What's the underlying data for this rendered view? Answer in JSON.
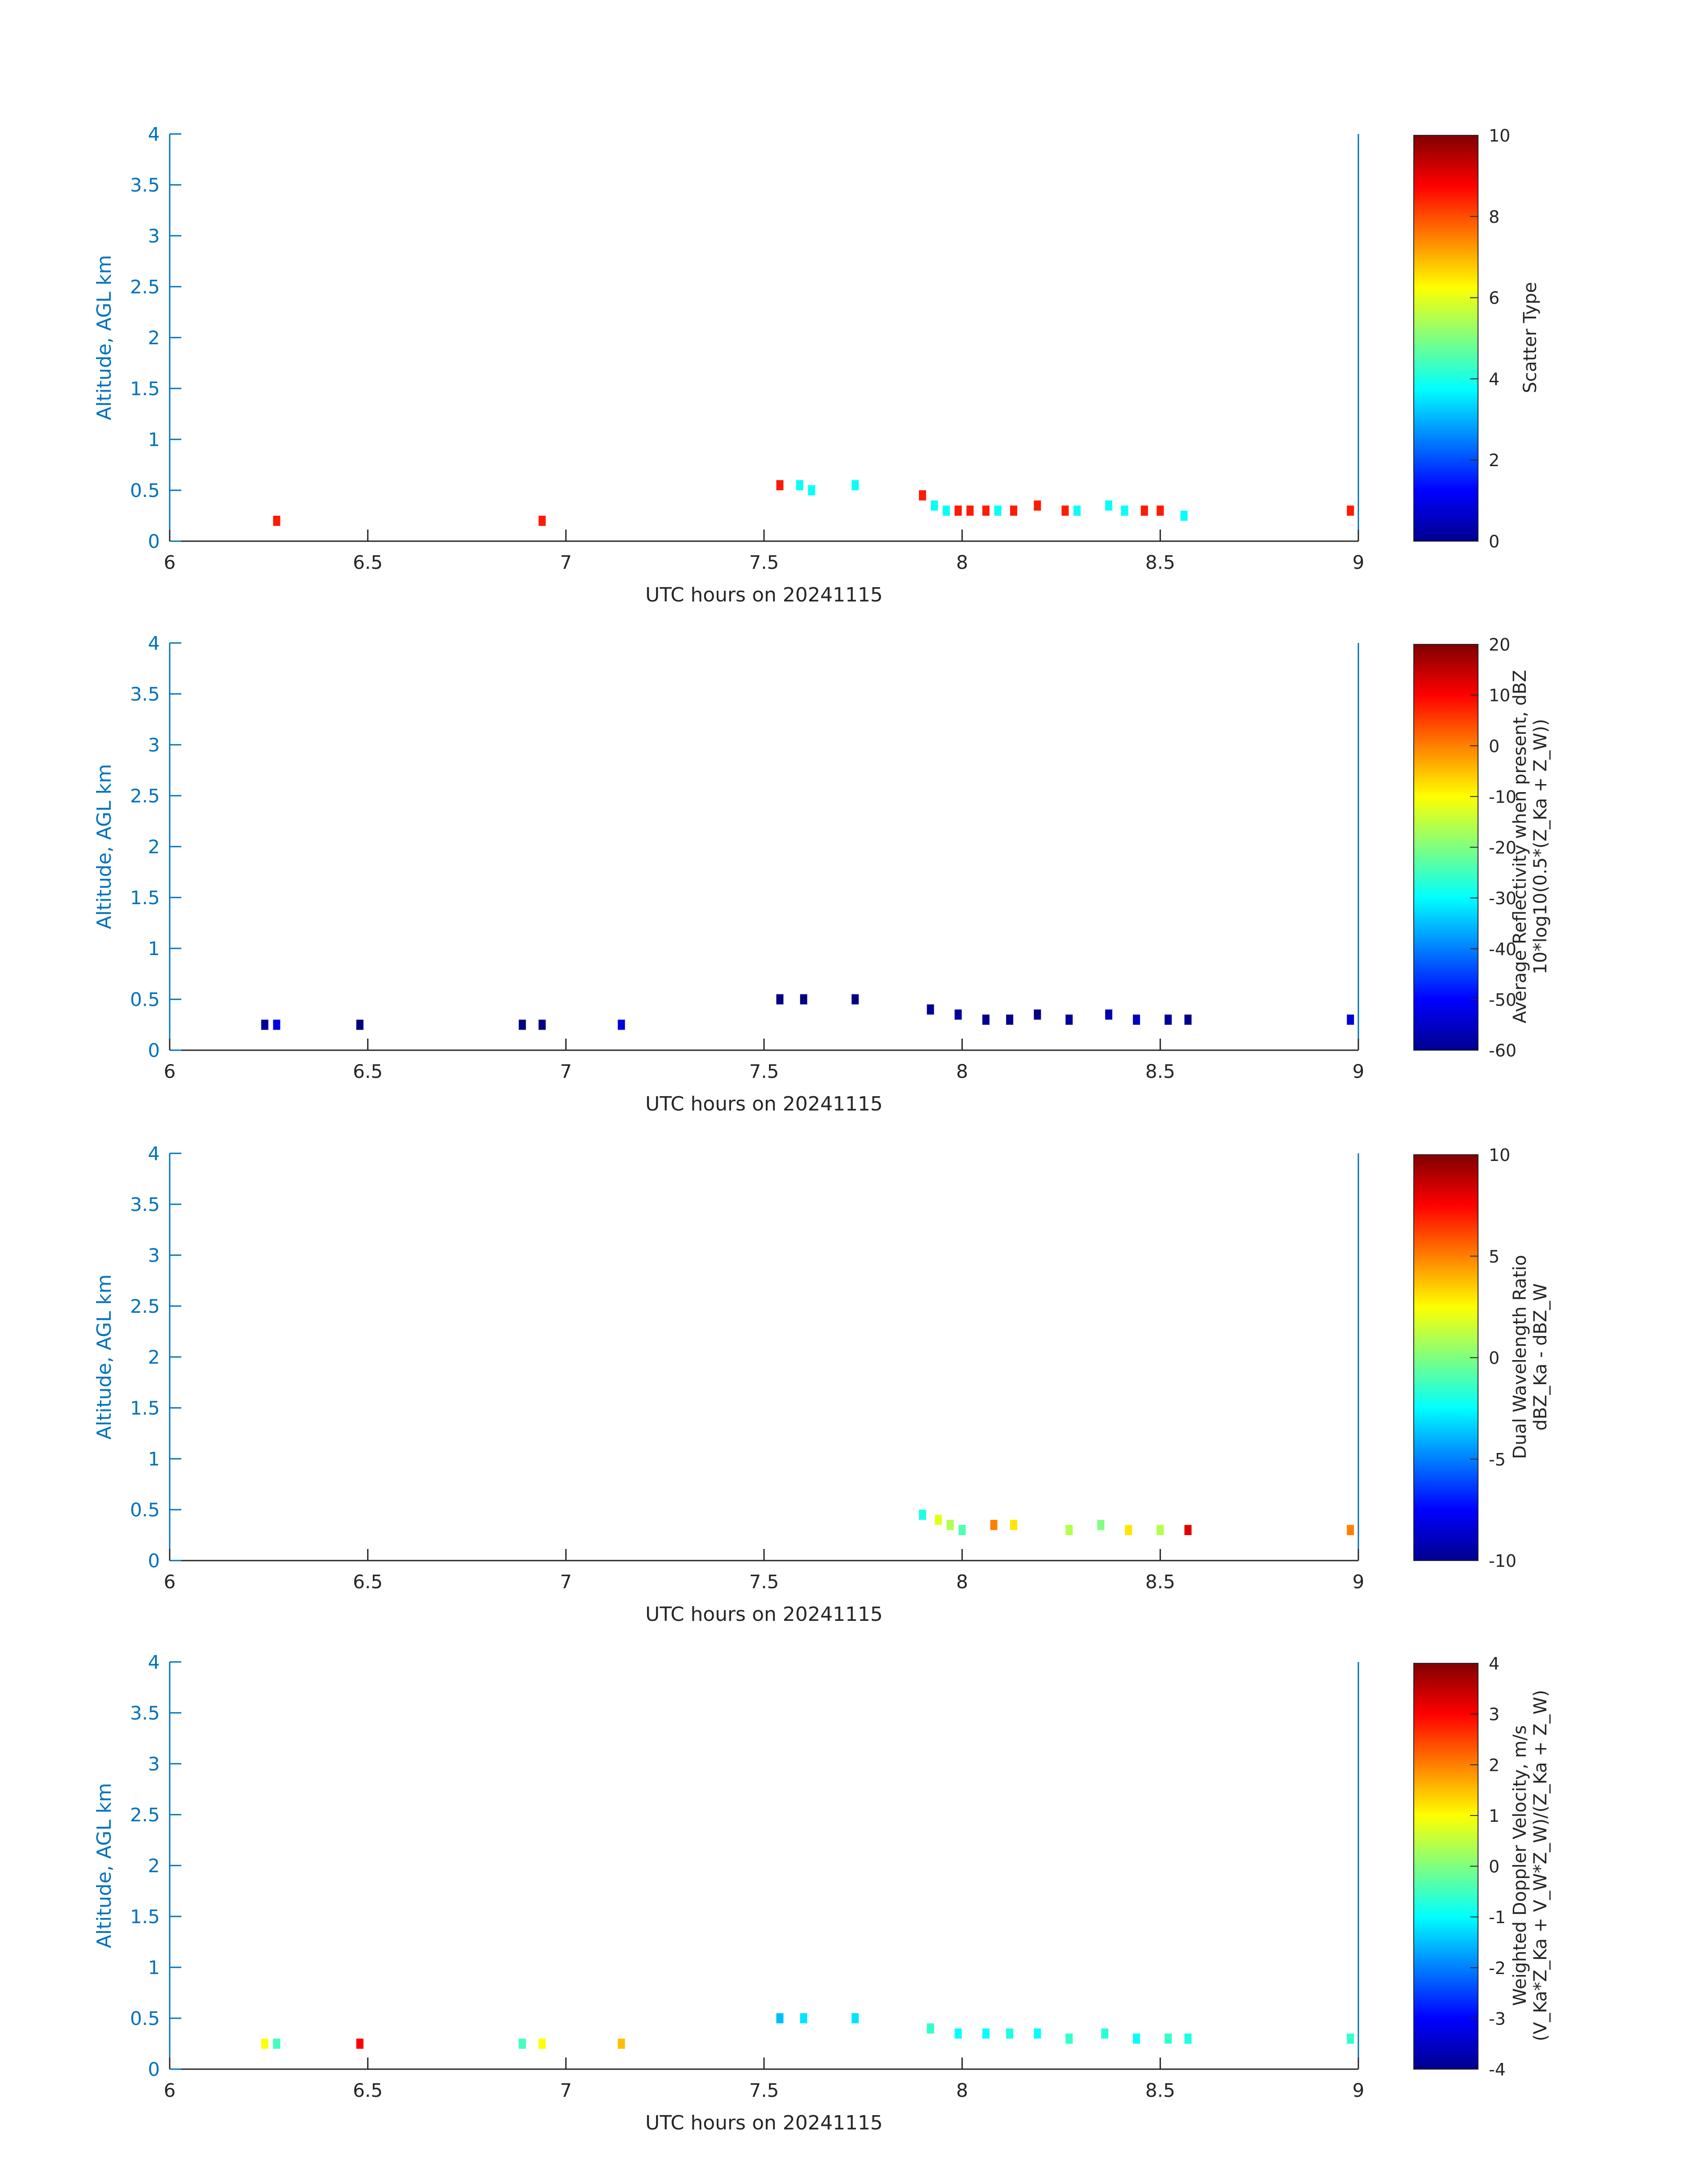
{
  "figure": {
    "xlabel": "UTC hours on 20241115",
    "ylabel": "Altitude, AGL km",
    "x_ticks": [
      "6",
      "6.5",
      "7",
      "7.5",
      "8",
      "8.5",
      "9"
    ],
    "y_ticks": [
      "0",
      "0.5",
      "1",
      "1.5",
      "2",
      "2.5",
      "3",
      "3.5",
      "4"
    ]
  },
  "chart_data": [
    {
      "type": "heatmap",
      "title": "",
      "xlabel": "UTC hours on 20241115",
      "ylabel": "Altitude, AGL km",
      "xlim": [
        6,
        9
      ],
      "ylim": [
        0,
        4
      ],
      "grid": false,
      "colormap": "jet",
      "colorbar": {
        "label_lines": [
          "Scatter Type"
        ],
        "range": [
          0,
          10
        ],
        "ticks": [
          "0",
          "2",
          "4",
          "6",
          "8",
          "10"
        ]
      },
      "cells": [
        {
          "x": 6.27,
          "y": 0.2,
          "value": 8.5
        },
        {
          "x": 6.94,
          "y": 0.2,
          "value": 8.5
        },
        {
          "x": 7.54,
          "y": 0.55,
          "value": 8.5
        },
        {
          "x": 7.59,
          "y": 0.55,
          "value": 3.8
        },
        {
          "x": 7.62,
          "y": 0.5,
          "value": 3.8
        },
        {
          "x": 7.73,
          "y": 0.55,
          "value": 3.8
        },
        {
          "x": 7.9,
          "y": 0.45,
          "value": 8.5
        },
        {
          "x": 7.93,
          "y": 0.35,
          "value": 3.8
        },
        {
          "x": 7.96,
          "y": 0.3,
          "value": 3.8
        },
        {
          "x": 7.99,
          "y": 0.3,
          "value": 8.5
        },
        {
          "x": 8.02,
          "y": 0.3,
          "value": 8.5
        },
        {
          "x": 8.06,
          "y": 0.3,
          "value": 8.5
        },
        {
          "x": 8.09,
          "y": 0.3,
          "value": 3.8
        },
        {
          "x": 8.13,
          "y": 0.3,
          "value": 8.5
        },
        {
          "x": 8.19,
          "y": 0.35,
          "value": 8.5
        },
        {
          "x": 8.26,
          "y": 0.3,
          "value": 8.5
        },
        {
          "x": 8.29,
          "y": 0.3,
          "value": 3.8
        },
        {
          "x": 8.37,
          "y": 0.35,
          "value": 3.8
        },
        {
          "x": 8.41,
          "y": 0.3,
          "value": 3.8
        },
        {
          "x": 8.46,
          "y": 0.3,
          "value": 8.5
        },
        {
          "x": 8.5,
          "y": 0.3,
          "value": 8.5
        },
        {
          "x": 8.56,
          "y": 0.25,
          "value": 3.8
        },
        {
          "x": 8.98,
          "y": 0.3,
          "value": 8.5
        }
      ]
    },
    {
      "type": "heatmap",
      "title": "",
      "xlabel": "UTC hours on 20241115",
      "ylabel": "Altitude, AGL km",
      "xlim": [
        6,
        9
      ],
      "ylim": [
        0,
        4
      ],
      "grid": false,
      "colormap": "jet",
      "colorbar": {
        "label_lines": [
          "Average Reflectivity when present, dBZ",
          "10*log10(0.5*(Z_Ka + Z_W))"
        ],
        "range": [
          -60,
          20
        ],
        "ticks": [
          "-60",
          "-50",
          "-40",
          "-30",
          "-20",
          "-10",
          "0",
          "10",
          "20"
        ]
      },
      "cells": [
        {
          "x": 6.24,
          "y": 0.25,
          "value": -58
        },
        {
          "x": 6.27,
          "y": 0.25,
          "value": -52
        },
        {
          "x": 6.48,
          "y": 0.25,
          "value": -60
        },
        {
          "x": 6.89,
          "y": 0.25,
          "value": -60
        },
        {
          "x": 6.94,
          "y": 0.25,
          "value": -60
        },
        {
          "x": 7.14,
          "y": 0.25,
          "value": -53
        },
        {
          "x": 7.54,
          "y": 0.5,
          "value": -60
        },
        {
          "x": 7.6,
          "y": 0.5,
          "value": -60
        },
        {
          "x": 7.73,
          "y": 0.5,
          "value": -60
        },
        {
          "x": 7.92,
          "y": 0.4,
          "value": -58
        },
        {
          "x": 7.99,
          "y": 0.35,
          "value": -58
        },
        {
          "x": 8.06,
          "y": 0.3,
          "value": -59
        },
        {
          "x": 8.12,
          "y": 0.3,
          "value": -59
        },
        {
          "x": 8.19,
          "y": 0.35,
          "value": -60
        },
        {
          "x": 8.27,
          "y": 0.3,
          "value": -58
        },
        {
          "x": 8.37,
          "y": 0.35,
          "value": -56
        },
        {
          "x": 8.44,
          "y": 0.3,
          "value": -55
        },
        {
          "x": 8.52,
          "y": 0.3,
          "value": -58
        },
        {
          "x": 8.57,
          "y": 0.3,
          "value": -59
        },
        {
          "x": 8.98,
          "y": 0.3,
          "value": -53
        }
      ]
    },
    {
      "type": "heatmap",
      "title": "",
      "xlabel": "UTC hours on 20241115",
      "ylabel": "Altitude, AGL km",
      "xlim": [
        6,
        9
      ],
      "ylim": [
        0,
        4
      ],
      "grid": false,
      "colormap": "jet",
      "colorbar": {
        "label_lines": [
          "Dual Wavelength Ratio",
          "dBZ_Ka - dBZ_W"
        ],
        "range": [
          -10,
          10
        ],
        "ticks": [
          "-10",
          "-5",
          "0",
          "5",
          "10"
        ]
      },
      "cells": [
        {
          "x": 7.9,
          "y": 0.45,
          "value": -2
        },
        {
          "x": 7.94,
          "y": 0.4,
          "value": 2
        },
        {
          "x": 7.97,
          "y": 0.35,
          "value": 1
        },
        {
          "x": 8.0,
          "y": 0.3,
          "value": -1
        },
        {
          "x": 8.08,
          "y": 0.35,
          "value": 5
        },
        {
          "x": 8.13,
          "y": 0.35,
          "value": 3
        },
        {
          "x": 8.27,
          "y": 0.3,
          "value": 1
        },
        {
          "x": 8.35,
          "y": 0.35,
          "value": 0
        },
        {
          "x": 8.42,
          "y": 0.3,
          "value": 3
        },
        {
          "x": 8.5,
          "y": 0.3,
          "value": 1
        },
        {
          "x": 8.57,
          "y": 0.3,
          "value": 8
        },
        {
          "x": 8.98,
          "y": 0.3,
          "value": 5
        }
      ]
    },
    {
      "type": "heatmap",
      "title": "",
      "xlabel": "UTC hours on 20241115",
      "ylabel": "Altitude, AGL km",
      "xlim": [
        6,
        9
      ],
      "ylim": [
        0,
        4
      ],
      "grid": false,
      "colormap": "jet",
      "colorbar": {
        "label_lines": [
          "Weighted Doppler Velocity, m/s",
          "(V_Ka*Z_Ka + V_W*Z_W)/(Z_Ka + Z_W)"
        ],
        "range": [
          -4,
          4
        ],
        "ticks": [
          "-4",
          "-3",
          "-2",
          "-1",
          "0",
          "1",
          "2",
          "3",
          "4"
        ]
      },
      "cells": [
        {
          "x": 6.24,
          "y": 0.25,
          "value": 1
        },
        {
          "x": 6.27,
          "y": 0.25,
          "value": -0.5
        },
        {
          "x": 6.48,
          "y": 0.25,
          "value": 3
        },
        {
          "x": 6.89,
          "y": 0.25,
          "value": -0.5
        },
        {
          "x": 6.94,
          "y": 0.25,
          "value": 1
        },
        {
          "x": 7.14,
          "y": 0.25,
          "value": 1.5
        },
        {
          "x": 7.54,
          "y": 0.5,
          "value": -1.5
        },
        {
          "x": 7.6,
          "y": 0.5,
          "value": -1.2
        },
        {
          "x": 7.73,
          "y": 0.5,
          "value": -1.2
        },
        {
          "x": 7.92,
          "y": 0.4,
          "value": -0.6
        },
        {
          "x": 7.99,
          "y": 0.35,
          "value": -1
        },
        {
          "x": 8.06,
          "y": 0.35,
          "value": -1
        },
        {
          "x": 8.12,
          "y": 0.35,
          "value": -0.8
        },
        {
          "x": 8.19,
          "y": 0.35,
          "value": -1
        },
        {
          "x": 8.27,
          "y": 0.3,
          "value": -0.6
        },
        {
          "x": 8.36,
          "y": 0.35,
          "value": -0.7
        },
        {
          "x": 8.44,
          "y": 0.3,
          "value": -1
        },
        {
          "x": 8.52,
          "y": 0.3,
          "value": -0.6
        },
        {
          "x": 8.57,
          "y": 0.3,
          "value": -0.8
        },
        {
          "x": 8.98,
          "y": 0.3,
          "value": -0.6
        }
      ]
    }
  ]
}
